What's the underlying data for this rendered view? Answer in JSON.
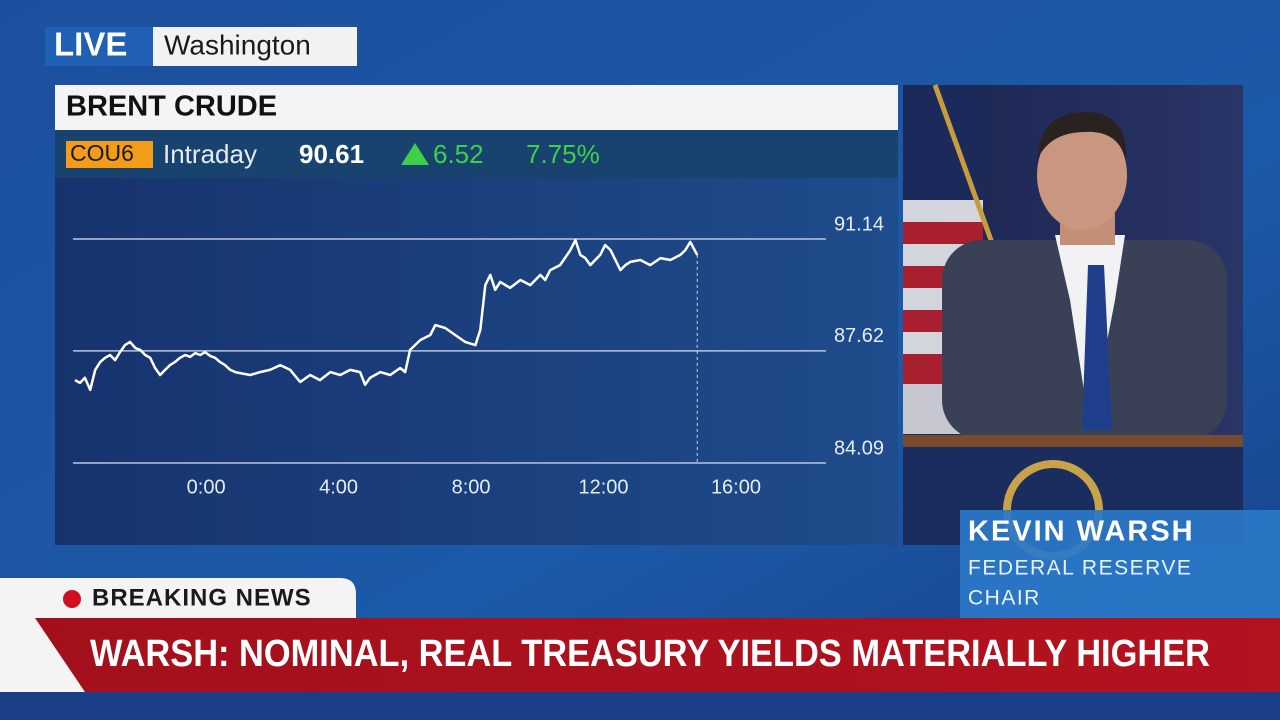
{
  "live_tag": {
    "live": "LIVE",
    "location": "Washington"
  },
  "quote": {
    "symbol": "COU6",
    "period": "Intraday",
    "price": "90.61",
    "change": "6.52",
    "change_pct": "7.75%"
  },
  "chart_data": {
    "type": "line",
    "title": "BRENT CRUDE",
    "x": [
      -3.96,
      -3.81,
      -3.66,
      -3.5,
      -3.35,
      -3.2,
      -3.05,
      -2.9,
      -2.75,
      -2.6,
      -2.45,
      -2.3,
      -2.14,
      -1.99,
      -1.84,
      -1.69,
      -1.54,
      -1.39,
      -1.24,
      -1.09,
      -0.94,
      -0.79,
      -0.63,
      -0.48,
      -0.33,
      -0.18,
      -0.03,
      0.12,
      0.27,
      0.42,
      0.57,
      0.73,
      0.88,
      1.03,
      1.33,
      1.63,
      1.93,
      2.24,
      2.54,
      2.84,
      3.14,
      3.44,
      3.75,
      4.05,
      4.35,
      4.65,
      4.8,
      4.95,
      5.26,
      5.56,
      5.86,
      6.01,
      6.16,
      6.47,
      6.77,
      6.92,
      7.22,
      7.52,
      7.82,
      8.13,
      8.28,
      8.43,
      8.58,
      8.73,
      8.88,
      9.18,
      9.49,
      9.79,
      10.09,
      10.24,
      10.39,
      10.69,
      11.0,
      11.15,
      11.3,
      11.45,
      11.6,
      11.75,
      11.9,
      12.05,
      12.21,
      12.36,
      12.51,
      12.66,
      12.81,
      13.11,
      13.41,
      13.72,
      14.02,
      14.32,
      14.47,
      14.62,
      14.83
    ],
    "series": [
      {
        "name": "Brent Crude",
        "color": "#ffffff",
        "values": [
          86.7,
          86.61,
          86.77,
          86.39,
          87.02,
          87.27,
          87.4,
          87.49,
          87.33,
          87.58,
          87.8,
          87.9,
          87.71,
          87.65,
          87.49,
          87.4,
          87.08,
          86.86,
          87.02,
          87.17,
          87.27,
          87.4,
          87.49,
          87.43,
          87.55,
          87.49,
          87.58,
          87.46,
          87.4,
          87.27,
          87.17,
          87.02,
          86.95,
          86.92,
          86.86,
          86.95,
          87.02,
          87.17,
          87.02,
          86.64,
          86.86,
          86.7,
          86.95,
          86.86,
          87.02,
          86.95,
          86.55,
          86.77,
          86.95,
          86.86,
          87.08,
          86.95,
          87.65,
          87.96,
          88.12,
          88.43,
          88.34,
          88.12,
          87.9,
          87.8,
          88.28,
          89.69,
          90.01,
          89.54,
          89.79,
          89.6,
          89.85,
          89.69,
          90.01,
          89.85,
          90.16,
          90.32,
          90.79,
          91.11,
          90.64,
          90.54,
          90.32,
          90.48,
          90.64,
          90.95,
          90.79,
          90.48,
          90.16,
          90.32,
          90.42,
          90.48,
          90.32,
          90.54,
          90.48,
          90.64,
          90.79,
          91.05,
          90.64
        ]
      }
    ],
    "xlim": [
      -4.02,
      20.5
    ],
    "ylim": [
      84.09,
      91.14
    ],
    "xticks": [
      {
        "value": 0,
        "label": "0:00"
      },
      {
        "value": 4,
        "label": "4:00"
      },
      {
        "value": 8,
        "label": "8:00"
      },
      {
        "value": 12,
        "label": "12:00"
      },
      {
        "value": 16,
        "label": "16:00"
      }
    ],
    "yticks": [
      84.09,
      87.62,
      91.14
    ],
    "grid": true
  },
  "lower_third": {
    "name": "KEVIN WARSH",
    "role_line1": "FEDERAL RESERVE",
    "role_line2": "CHAIR"
  },
  "ticker": {
    "tag": "BREAKING NEWS",
    "headline": "WARSH: NOMINAL, REAL TREASURY YIELDS MATERIALLY HIGHER"
  }
}
